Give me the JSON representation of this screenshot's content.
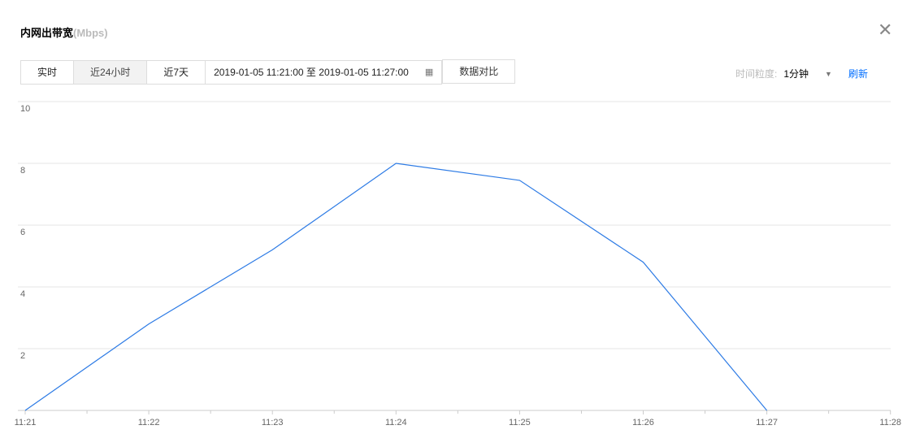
{
  "header": {
    "title": "内网出带宽",
    "unit": "(Mbps)",
    "close_icon": "close-icon"
  },
  "toolbar": {
    "tabs": [
      {
        "label": "实时"
      },
      {
        "label": "近24小时",
        "active": true
      },
      {
        "label": "近7天"
      }
    ],
    "date_range": "2019-01-05 11:21:00 至 2019-01-05 11:27:00",
    "calendar_icon": "calendar-icon",
    "compare": "数据对比"
  },
  "granularity": {
    "label": "时间粒度:",
    "value": "1分钟",
    "refresh": "刷新"
  },
  "chart_data": {
    "type": "line",
    "x": [
      "11:21",
      "11:22",
      "11:23",
      "11:24",
      "11:25",
      "11:26",
      "11:27"
    ],
    "x_ticks": [
      "11:21",
      "11:22",
      "11:23",
      "11:24",
      "11:25",
      "11:26",
      "11:27",
      "11:28"
    ],
    "values": [
      0,
      2.8,
      5.2,
      8,
      7.45,
      4.8,
      0
    ],
    "y_ticks": [
      "2",
      "4",
      "6",
      "8",
      "10"
    ],
    "ylim": [
      0,
      10
    ],
    "grid": true,
    "color": "#2d7be5"
  }
}
